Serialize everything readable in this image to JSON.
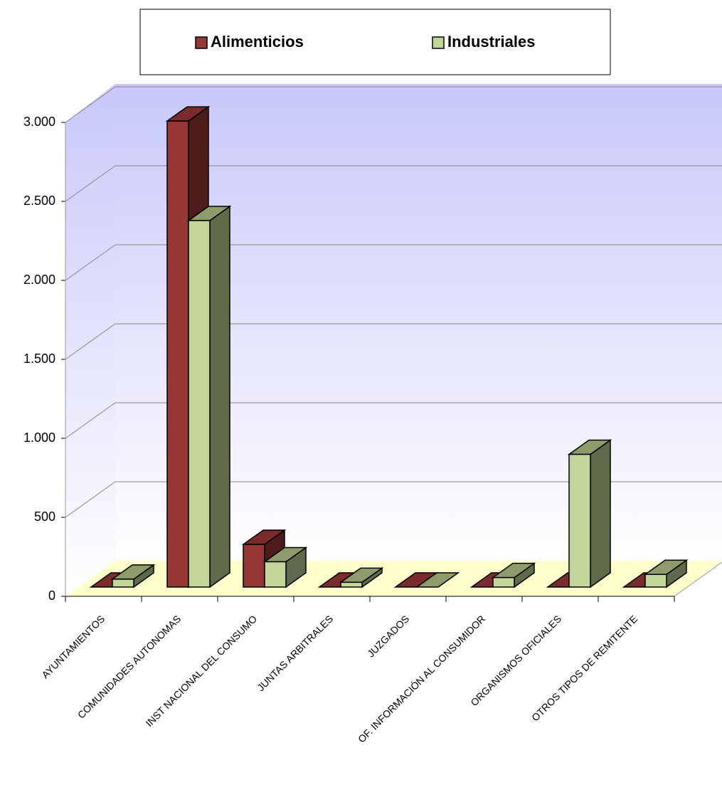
{
  "chart_data": {
    "type": "bar3d",
    "categories": [
      "AYUNTAMIENTOS",
      "COMUNIDADES AUTONOMAS",
      "INST NACIONAL DEL CONSUMO",
      "JUNTAS ARBITRALES",
      "JUZGADOS",
      "OF. INFORMACIÓN AL CONSUMIDOR",
      "ORGANISMOS OFICIALES",
      "OTROS TIPOS DE REMITENTE"
    ],
    "series": [
      {
        "name": "Alimenticios",
        "color": "#953735",
        "values": [
          0,
          2950,
          270,
          0,
          0,
          0,
          0,
          0
        ]
      },
      {
        "name": "Industriales",
        "color": "#c4d79b",
        "values": [
          50,
          2320,
          160,
          30,
          0,
          60,
          840,
          80
        ]
      }
    ],
    "ylim": [
      0,
      3000
    ],
    "yticks": [
      0,
      500,
      {
        "value": 1000,
        "label": "1.000"
      },
      {
        "value": 1500,
        "label": "1.500"
      },
      {
        "value": 2000,
        "label": "2.000"
      },
      {
        "value": 2500,
        "label": "2.500"
      },
      {
        "value": 3000,
        "label": "3.000"
      }
    ],
    "grid": true,
    "legend": "top"
  }
}
